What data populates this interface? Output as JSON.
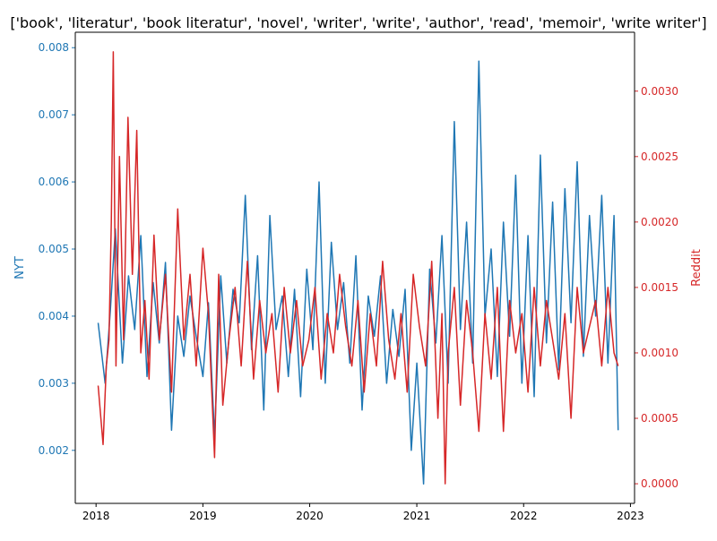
{
  "chart_data": {
    "type": "line",
    "title": "['book', 'literatur', 'book literatur', 'novel', 'writer', 'write', 'author', 'read', 'memoir', 'write writer']",
    "xlabel": "",
    "x_ticks": [
      "2018",
      "2019",
      "2020",
      "2021",
      "2022",
      "2023"
    ],
    "xlim": [
      "2017-10-22",
      "2023-01-15"
    ],
    "grid": false,
    "legend": "none",
    "axes": {
      "left": {
        "label": "NYT",
        "color": "#1f77b4",
        "ylim": [
          0.00121,
          0.00823
        ],
        "ticks": [
          "0.002",
          "0.003",
          "0.004",
          "0.005",
          "0.006",
          "0.007",
          "0.008"
        ]
      },
      "right": {
        "label": "Reddit",
        "color": "#d62728",
        "ylim": [
          -0.00015,
          0.00345
        ],
        "ticks": [
          "0.0000",
          "0.0005",
          "0.0010",
          "0.0015",
          "0.0020",
          "0.0025",
          "0.0030"
        ]
      }
    },
    "series": [
      {
        "axis": "left",
        "color": "#1f77b4",
        "x": [
          "2018-01-08",
          "2018-02-01",
          "2018-02-19",
          "2018-03-08",
          "2018-04-01",
          "2018-04-22",
          "2018-05-13",
          "2018-06-03",
          "2018-06-24",
          "2018-07-15",
          "2018-08-05",
          "2018-08-26",
          "2018-09-16",
          "2018-10-07",
          "2018-10-28",
          "2018-11-18",
          "2018-12-09",
          "2019-01-01",
          "2019-01-20",
          "2019-02-10",
          "2019-03-03",
          "2019-03-24",
          "2019-04-14",
          "2019-05-05",
          "2019-05-26",
          "2019-06-16",
          "2019-07-07",
          "2019-07-28",
          "2019-08-18",
          "2019-09-08",
          "2019-09-29",
          "2019-10-20",
          "2019-11-10",
          "2019-12-01",
          "2019-12-22",
          "2020-01-12",
          "2020-02-02",
          "2020-02-23",
          "2020-03-15",
          "2020-04-05",
          "2020-04-26",
          "2020-05-17",
          "2020-06-07",
          "2020-06-28",
          "2020-07-19",
          "2020-08-09",
          "2020-08-30",
          "2020-09-20",
          "2020-10-11",
          "2020-11-01",
          "2020-11-22",
          "2020-12-13",
          "2021-01-01",
          "2021-01-24",
          "2021-02-14",
          "2021-03-07",
          "2021-03-28",
          "2021-04-18",
          "2021-05-09",
          "2021-05-30",
          "2021-06-20",
          "2021-07-11",
          "2021-08-01",
          "2021-08-22",
          "2021-09-12",
          "2021-10-03",
          "2021-10-24",
          "2021-11-14",
          "2021-12-05",
          "2021-12-26",
          "2022-01-16",
          "2022-02-06",
          "2022-02-27",
          "2022-03-20",
          "2022-04-10",
          "2022-05-01",
          "2022-05-22",
          "2022-06-12",
          "2022-07-03",
          "2022-07-24",
          "2022-08-14",
          "2022-09-04",
          "2022-09-25",
          "2022-10-16",
          "2022-11-06",
          "2022-11-20"
        ],
        "y": [
          0.0039,
          0.003,
          0.0041,
          0.0053,
          0.0033,
          0.0046,
          0.0038,
          0.0052,
          0.0031,
          0.0045,
          0.0036,
          0.0048,
          0.0023,
          0.004,
          0.0034,
          0.0043,
          0.0037,
          0.0031,
          0.0042,
          0.0022,
          0.0046,
          0.0033,
          0.0044,
          0.0039,
          0.0058,
          0.0035,
          0.0049,
          0.0026,
          0.0055,
          0.0038,
          0.0043,
          0.0031,
          0.0044,
          0.0028,
          0.0047,
          0.0035,
          0.006,
          0.003,
          0.0051,
          0.0038,
          0.0045,
          0.0033,
          0.0049,
          0.0026,
          0.0043,
          0.0037,
          0.0046,
          0.003,
          0.0041,
          0.0034,
          0.0044,
          0.002,
          0.0033,
          0.0015,
          0.0047,
          0.0036,
          0.0052,
          0.003,
          0.0069,
          0.0038,
          0.0054,
          0.0033,
          0.0078,
          0.004,
          0.005,
          0.0031,
          0.0054,
          0.0037,
          0.0061,
          0.003,
          0.0052,
          0.0028,
          0.0064,
          0.0036,
          0.0057,
          0.0032,
          0.0059,
          0.0039,
          0.0063,
          0.0034,
          0.0055,
          0.004,
          0.0058,
          0.0033,
          0.0055,
          0.0023
        ]
      },
      {
        "axis": "right",
        "color": "#d62728",
        "x": [
          "2018-01-08",
          "2018-01-25",
          "2018-02-05",
          "2018-02-14",
          "2018-02-22",
          "2018-03-01",
          "2018-03-10",
          "2018-03-22",
          "2018-04-05",
          "2018-04-20",
          "2018-05-05",
          "2018-05-20",
          "2018-06-03",
          "2018-06-17",
          "2018-07-01",
          "2018-07-18",
          "2018-08-05",
          "2018-08-26",
          "2018-09-16",
          "2018-10-07",
          "2018-10-28",
          "2018-11-18",
          "2018-12-09",
          "2019-01-01",
          "2019-01-20",
          "2019-02-10",
          "2019-02-24",
          "2019-03-10",
          "2019-03-31",
          "2019-04-21",
          "2019-05-12",
          "2019-06-02",
          "2019-06-23",
          "2019-07-14",
          "2019-08-04",
          "2019-08-25",
          "2019-09-15",
          "2019-10-06",
          "2019-10-27",
          "2019-11-17",
          "2019-12-08",
          "2019-12-29",
          "2020-01-19",
          "2020-02-09",
          "2020-03-01",
          "2020-03-22",
          "2020-04-12",
          "2020-05-03",
          "2020-05-24",
          "2020-06-14",
          "2020-07-05",
          "2020-07-26",
          "2020-08-16",
          "2020-09-06",
          "2020-09-27",
          "2020-10-18",
          "2020-11-08",
          "2020-11-29",
          "2020-12-20",
          "2021-01-10",
          "2021-01-31",
          "2021-02-21",
          "2021-03-14",
          "2021-03-28",
          "2021-04-08",
          "2021-04-18",
          "2021-05-09",
          "2021-05-30",
          "2021-06-20",
          "2021-07-11",
          "2021-08-01",
          "2021-08-22",
          "2021-09-12",
          "2021-10-03",
          "2021-10-24",
          "2021-11-14",
          "2021-12-05",
          "2021-12-26",
          "2022-01-16",
          "2022-02-06",
          "2022-02-27",
          "2022-03-20",
          "2022-04-10",
          "2022-05-01",
          "2022-05-22",
          "2022-06-12",
          "2022-07-03",
          "2022-07-24",
          "2022-08-14",
          "2022-09-04",
          "2022-09-25",
          "2022-10-16",
          "2022-11-06",
          "2022-11-20"
        ],
        "y": [
          0.00075,
          0.0003,
          0.0009,
          0.0011,
          0.002,
          0.0033,
          0.0009,
          0.0025,
          0.0011,
          0.0028,
          0.0016,
          0.0027,
          0.001,
          0.0014,
          0.0008,
          0.0019,
          0.0011,
          0.0016,
          0.0007,
          0.0021,
          0.0011,
          0.0016,
          0.0009,
          0.0018,
          0.0013,
          0.0002,
          0.0016,
          0.0006,
          0.0011,
          0.0015,
          0.0009,
          0.0017,
          0.0008,
          0.0014,
          0.001,
          0.0013,
          0.0007,
          0.0015,
          0.001,
          0.0014,
          0.0009,
          0.0011,
          0.0015,
          0.0008,
          0.0013,
          0.001,
          0.0016,
          0.0012,
          0.0009,
          0.0014,
          0.0007,
          0.0013,
          0.0009,
          0.0017,
          0.0011,
          0.0008,
          0.0013,
          0.0007,
          0.0016,
          0.0012,
          0.0009,
          0.0017,
          0.0005,
          0.0013,
          0.0,
          0.001,
          0.0015,
          0.0006,
          0.0014,
          0.001,
          0.0004,
          0.0013,
          0.0008,
          0.0015,
          0.0004,
          0.0014,
          0.001,
          0.0013,
          0.0007,
          0.0015,
          0.0009,
          0.0014,
          0.0011,
          0.0008,
          0.0013,
          0.0005,
          0.0015,
          0.001,
          0.0012,
          0.0014,
          0.0009,
          0.0015,
          0.001,
          0.0009
        ]
      }
    ]
  }
}
